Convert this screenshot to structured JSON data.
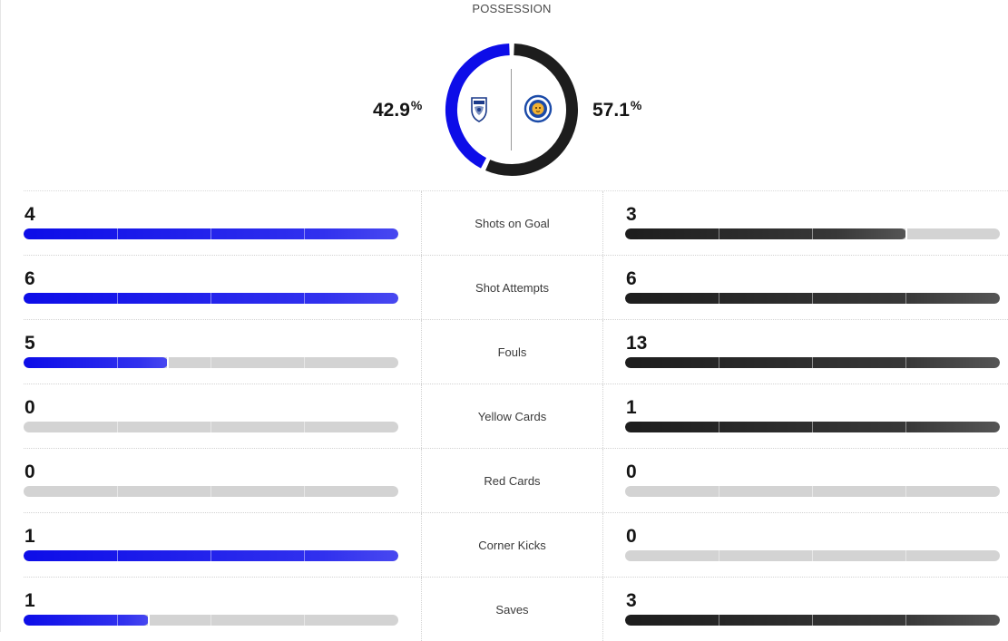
{
  "possession": {
    "title": "POSSESSION",
    "home_pct": "42.9",
    "away_pct": "57.1",
    "percent_symbol": "%",
    "home_fraction": 0.429,
    "away_fraction": 0.571
  },
  "teams": {
    "home": {
      "crest": "birmingham-city-crest-icon",
      "color": "#0d0de8"
    },
    "away": {
      "crest": "leicester-city-crest-icon",
      "color": "#1d1d1d"
    }
  },
  "stats": [
    {
      "label": "Shots on Goal",
      "home": "4",
      "away": "3",
      "home_fraction": 1.0,
      "away_fraction": 0.75
    },
    {
      "label": "Shot Attempts",
      "home": "6",
      "away": "6",
      "home_fraction": 1.0,
      "away_fraction": 1.0
    },
    {
      "label": "Fouls",
      "home": "5",
      "away": "13",
      "home_fraction": 0.385,
      "away_fraction": 1.0
    },
    {
      "label": "Yellow Cards",
      "home": "0",
      "away": "1",
      "home_fraction": 0.0,
      "away_fraction": 1.0
    },
    {
      "label": "Red Cards",
      "home": "0",
      "away": "0",
      "home_fraction": 0.0,
      "away_fraction": 0.0
    },
    {
      "label": "Corner Kicks",
      "home": "1",
      "away": "0",
      "home_fraction": 1.0,
      "away_fraction": 0.0
    },
    {
      "label": "Saves",
      "home": "1",
      "away": "3",
      "home_fraction": 0.333,
      "away_fraction": 1.0
    }
  ]
}
